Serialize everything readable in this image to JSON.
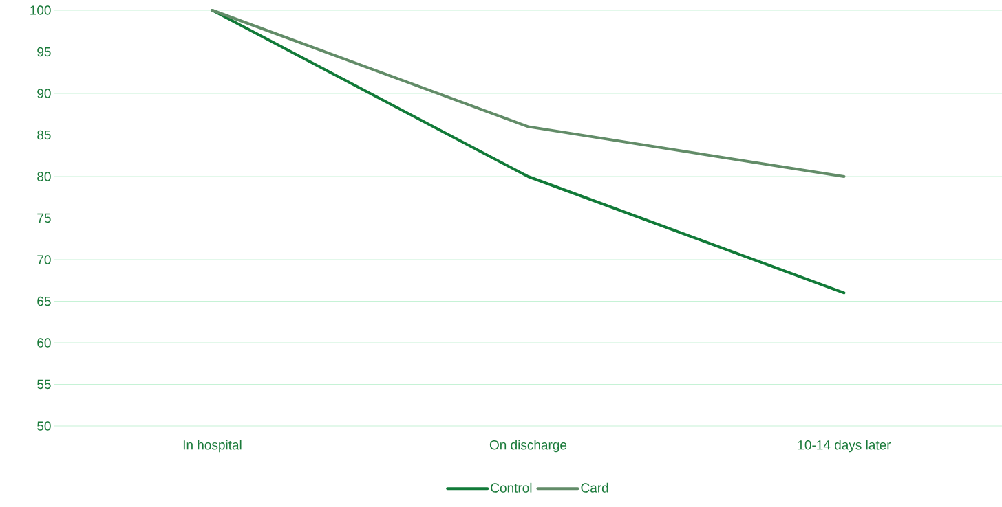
{
  "chart_data": {
    "type": "line",
    "categories": [
      "In hospital",
      "On discharge",
      "10-14 days later"
    ],
    "series": [
      {
        "name": "Control",
        "color": "#117a38",
        "values": [
          100,
          80,
          66
        ]
      },
      {
        "name": "Card",
        "color": "#628c68",
        "values": [
          100,
          86,
          80
        ]
      }
    ],
    "ylim": [
      50,
      100
    ],
    "yticks": [
      50,
      55,
      60,
      65,
      70,
      75,
      80,
      85,
      90,
      95,
      100
    ],
    "grid": "y",
    "legend": "bottom",
    "marker": "none",
    "line_style": "solid"
  }
}
